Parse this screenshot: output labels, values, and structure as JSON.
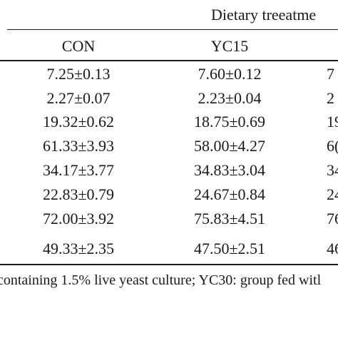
{
  "table": {
    "group_header": "Dietary treeatme",
    "columns": [
      "CON",
      "YC15"
    ],
    "rows": [
      {
        "con": "7.25±0.13",
        "yc15": "7.60±0.12",
        "clipped": "7"
      },
      {
        "con": "2.27±0.07",
        "yc15": "2.23±0.04",
        "clipped": "2"
      },
      {
        "con": "19.32±0.62",
        "yc15": "18.75±0.69",
        "clipped": "19"
      },
      {
        "con": "61.33±3.93",
        "yc15": "58.00±4.27",
        "clipped": "6("
      },
      {
        "con": "34.17±3.77",
        "yc15": "34.83±3.04",
        "clipped": "34"
      },
      {
        "con": "22.83±0.79",
        "yc15": "24.67±0.84",
        "clipped": "24"
      },
      {
        "con": "72.00±3.92",
        "yc15": "75.83±4.51",
        "clipped": "76"
      },
      {
        "con": "49.33±2.35",
        "yc15": "47.50±2.51",
        "clipped": "46"
      }
    ]
  },
  "footnote": "containing 1.5% live yeast culture; YC30: group fed witl"
}
